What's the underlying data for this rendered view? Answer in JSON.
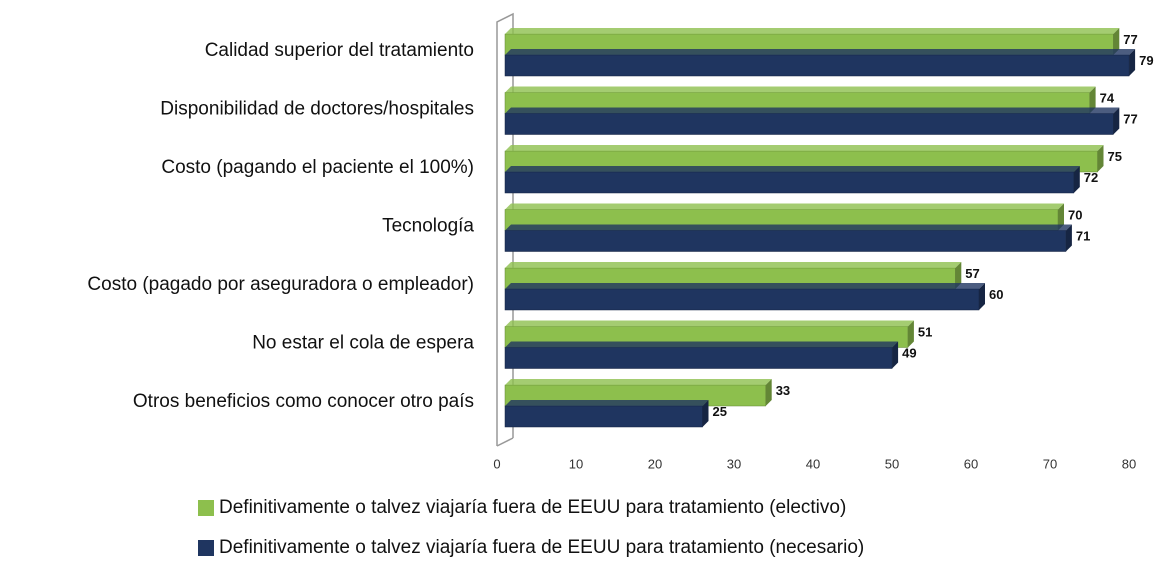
{
  "chart_data": {
    "type": "bar",
    "orientation": "horizontal",
    "categories": [
      "Calidad superior del tratamiento",
      "Disponibilidad de doctores/hospitales",
      "Costo (pagando el paciente el 100%)",
      "Tecnología",
      "Costo (pagado por aseguradora o empleador)",
      "No estar el cola de espera",
      "Otros beneficios como conocer otro país"
    ],
    "series": [
      {
        "name": "Definitivamente o talvez viajaría fuera de EEUU para tratamiento (electivo)",
        "color": "#8dbf4d",
        "values": [
          77,
          74,
          75,
          70,
          57,
          51,
          33
        ]
      },
      {
        "name": "Definitivamente o talvez viajaría fuera de EEUU para tratamiento (necesario)",
        "color": "#1f3560",
        "values": [
          79,
          77,
          72,
          71,
          60,
          49,
          25
        ]
      }
    ],
    "xlim": [
      0,
      80
    ],
    "xticks": [
      0,
      10,
      20,
      30,
      40,
      50,
      60,
      70,
      80
    ]
  }
}
